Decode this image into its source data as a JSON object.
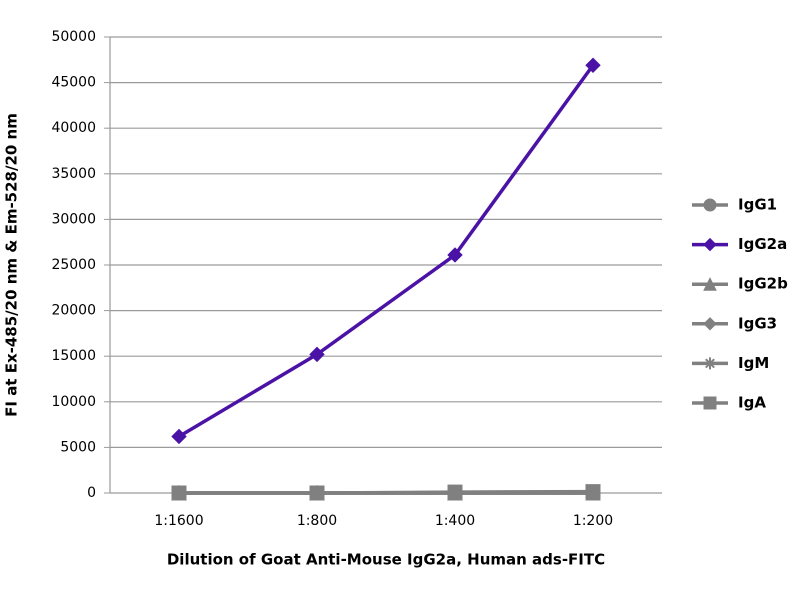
{
  "chart_data": {
    "type": "line",
    "y_label": "FI at Ex-485/20 nm & Em-528/20 nm",
    "x_label": "Dilution of Goat Anti-Mouse IgG2a, Human ads-FITC",
    "categories": [
      "1:1600",
      "1:800",
      "1:400",
      "1:200"
    ],
    "series": [
      {
        "name": "IgG1",
        "color": "#808080",
        "marker": "circle",
        "values": [
          0,
          0,
          0,
          0
        ]
      },
      {
        "name": "IgG2a",
        "color": "#4b12a6",
        "marker": "diamond",
        "values": [
          6200,
          15200,
          26100,
          46900
        ]
      },
      {
        "name": "IgG2b",
        "color": "#808080",
        "marker": "triangle",
        "values": [
          0,
          0,
          0,
          0
        ]
      },
      {
        "name": "IgG3",
        "color": "#808080",
        "marker": "diamond",
        "values": [
          0,
          0,
          0,
          0
        ]
      },
      {
        "name": "IgM",
        "color": "#808080",
        "marker": "star",
        "values": [
          0,
          0,
          0,
          0
        ]
      },
      {
        "name": "IgA",
        "color": "#808080",
        "marker": "square",
        "values": [
          0,
          0,
          100,
          150
        ]
      }
    ],
    "ylim": [
      0,
      50000
    ],
    "yticks": [
      0,
      5000,
      10000,
      15000,
      20000,
      25000,
      30000,
      35000,
      40000,
      45000,
      50000
    ],
    "grid": true,
    "legend": "right"
  }
}
